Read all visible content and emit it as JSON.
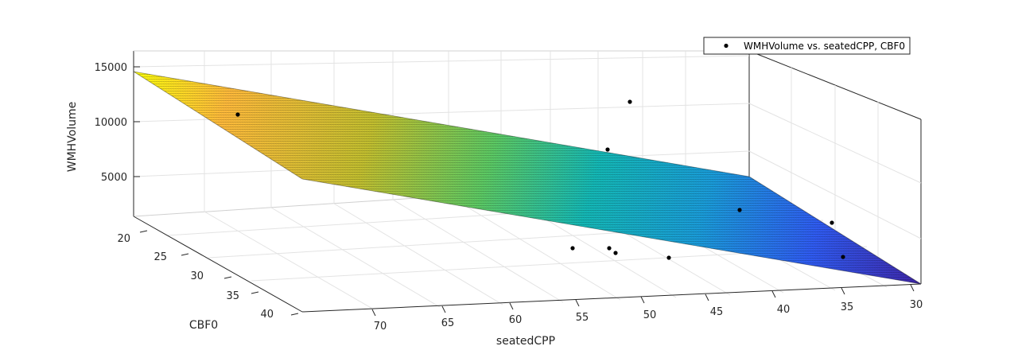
{
  "chart_data": {
    "type": "surface3d",
    "xlabel": "seatedCPP",
    "ylabel": "CBF0",
    "zlabel": "WMHVolume",
    "x_ticks": [
      "30",
      "35",
      "40",
      "45",
      "50",
      "55",
      "60",
      "65",
      "70"
    ],
    "y_ticks": [
      "20",
      "25",
      "30",
      "35",
      "40"
    ],
    "z_ticks": [
      "5000",
      "10000",
      "15000"
    ],
    "legend": {
      "label": "WMHVolume vs. seatedCPP, CBF0",
      "position": "top-right"
    },
    "grid": true,
    "colormap": [
      "#3e26a8",
      "#2f5bf0",
      "#1a9bd8",
      "#14b7b5",
      "#5cc863",
      "#c2be2f",
      "#fdb93b",
      "#f9fb0e"
    ],
    "points": [
      {
        "seatedCPP": 70,
        "CBF0": 20,
        "WMHVolume": 10600
      },
      {
        "seatedCPP": 48,
        "CBF0": 25,
        "WMHVolume": 12800
      },
      {
        "seatedCPP": 50,
        "CBF0": 30,
        "WMHVolume": 7300
      },
      {
        "seatedCPP": 37,
        "CBF0": 25,
        "WMHVolume": 1800
      },
      {
        "seatedCPP": 32,
        "CBF0": 30,
        "WMHVolume": 1200
      },
      {
        "seatedCPP": 34,
        "CBF0": 38,
        "WMHVolume": 500
      },
      {
        "seatedCPP": 55,
        "CBF0": 37,
        "WMHVolume": 250
      },
      {
        "seatedCPP": 51,
        "CBF0": 36,
        "WMHVolume": 300
      },
      {
        "seatedCPP": 50,
        "CBF0": 37,
        "WMHVolume": 280
      },
      {
        "seatedCPP": 45,
        "CBF0": 40,
        "WMHVolume": 200
      }
    ]
  }
}
